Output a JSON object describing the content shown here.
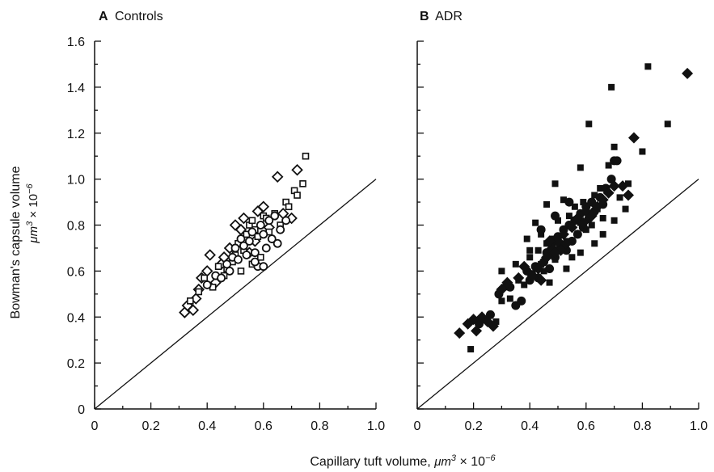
{
  "figure": {
    "ylabel": "Bowman's capsule volume",
    "ylabel_unit_base": "μm",
    "ylabel_unit_exp": "3",
    "ylabel_unit_mult": " × 10",
    "ylabel_unit_exp2": "−6",
    "xlabel_text": "Capillary tuft volume, ",
    "xlabel_unit_base": "μm",
    "xlabel_unit_exp": "3",
    "xlabel_unit_mult": " × 10",
    "xlabel_unit_exp2": "−6"
  },
  "chart_data": [
    {
      "type": "scatter",
      "panel_letter": "A",
      "title": "Controls",
      "xlim": [
        0,
        1.0
      ],
      "ylim": [
        0,
        1.6
      ],
      "x_ticks": [
        "0",
        "0.2",
        "0.4",
        "0.6",
        "0.8",
        "1.0"
      ],
      "y_ticks": [
        "0",
        "0.2",
        "0.4",
        "0.6",
        "0.8",
        "1.0",
        "1.2",
        "1.4",
        "1.6"
      ],
      "reference_line": [
        [
          0,
          0
        ],
        [
          1.0,
          1.0
        ]
      ],
      "series": [
        {
          "marker": "open-diamond",
          "points": [
            [
              0.32,
              0.42
            ],
            [
              0.33,
              0.45
            ],
            [
              0.35,
              0.43
            ],
            [
              0.36,
              0.48
            ],
            [
              0.37,
              0.52
            ],
            [
              0.38,
              0.57
            ],
            [
              0.4,
              0.6
            ],
            [
              0.41,
              0.67
            ],
            [
              0.43,
              0.55
            ],
            [
              0.45,
              0.63
            ],
            [
              0.46,
              0.66
            ],
            [
              0.48,
              0.7
            ],
            [
              0.5,
              0.8
            ],
            [
              0.52,
              0.78
            ],
            [
              0.53,
              0.83
            ],
            [
              0.55,
              0.68
            ],
            [
              0.57,
              0.73
            ],
            [
              0.58,
              0.86
            ],
            [
              0.6,
              0.88
            ],
            [
              0.62,
              0.79
            ],
            [
              0.65,
              1.01
            ],
            [
              0.67,
              0.85
            ],
            [
              0.7,
              0.83
            ],
            [
              0.72,
              1.04
            ]
          ]
        },
        {
          "marker": "open-square",
          "points": [
            [
              0.34,
              0.47
            ],
            [
              0.37,
              0.51
            ],
            [
              0.39,
              0.57
            ],
            [
              0.42,
              0.53
            ],
            [
              0.44,
              0.62
            ],
            [
              0.46,
              0.58
            ],
            [
              0.47,
              0.61
            ],
            [
              0.49,
              0.64
            ],
            [
              0.5,
              0.67
            ],
            [
              0.51,
              0.72
            ],
            [
              0.53,
              0.69
            ],
            [
              0.54,
              0.76
            ],
            [
              0.55,
              0.8
            ],
            [
              0.56,
              0.82
            ],
            [
              0.57,
              0.78
            ],
            [
              0.58,
              0.75
            ],
            [
              0.59,
              0.66
            ],
            [
              0.6,
              0.84
            ],
            [
              0.61,
              0.83
            ],
            [
              0.62,
              0.77
            ],
            [
              0.64,
              0.85
            ],
            [
              0.66,
              0.8
            ],
            [
              0.68,
              0.9
            ],
            [
              0.69,
              0.88
            ],
            [
              0.71,
              0.95
            ],
            [
              0.72,
              0.93
            ],
            [
              0.74,
              0.98
            ],
            [
              0.75,
              1.1
            ],
            [
              0.56,
              0.63
            ],
            [
              0.52,
              0.6
            ]
          ]
        },
        {
          "marker": "open-circle",
          "points": [
            [
              0.4,
              0.54
            ],
            [
              0.43,
              0.58
            ],
            [
              0.45,
              0.57
            ],
            [
              0.47,
              0.63
            ],
            [
              0.48,
              0.6
            ],
            [
              0.49,
              0.66
            ],
            [
              0.5,
              0.7
            ],
            [
              0.51,
              0.65
            ],
            [
              0.52,
              0.74
            ],
            [
              0.53,
              0.71
            ],
            [
              0.54,
              0.67
            ],
            [
              0.55,
              0.73
            ],
            [
              0.56,
              0.77
            ],
            [
              0.57,
              0.68
            ],
            [
              0.58,
              0.62
            ],
            [
              0.59,
              0.8
            ],
            [
              0.6,
              0.76
            ],
            [
              0.61,
              0.7
            ],
            [
              0.62,
              0.82
            ],
            [
              0.63,
              0.74
            ],
            [
              0.64,
              0.84
            ],
            [
              0.65,
              0.72
            ],
            [
              0.66,
              0.78
            ],
            [
              0.68,
              0.82
            ],
            [
              0.57,
              0.64
            ],
            [
              0.6,
              0.62
            ]
          ]
        }
      ]
    },
    {
      "type": "scatter",
      "panel_letter": "B",
      "title": "ADR",
      "xlim": [
        0,
        1.0
      ],
      "ylim": [
        0,
        1.6
      ],
      "x_ticks": [
        "0",
        "0.2",
        "0.4",
        "0.6",
        "0.8",
        "1.0"
      ],
      "y_ticks": [],
      "reference_line": [
        [
          0,
          0
        ],
        [
          1.0,
          1.0
        ]
      ],
      "series": [
        {
          "marker": "filled-square",
          "points": [
            [
              0.19,
              0.26
            ],
            [
              0.28,
              0.38
            ],
            [
              0.3,
              0.47
            ],
            [
              0.31,
              0.53
            ],
            [
              0.33,
              0.48
            ],
            [
              0.36,
              0.56
            ],
            [
              0.38,
              0.54
            ],
            [
              0.4,
              0.66
            ],
            [
              0.41,
              0.59
            ],
            [
              0.43,
              0.69
            ],
            [
              0.44,
              0.63
            ],
            [
              0.45,
              0.6
            ],
            [
              0.46,
              0.72
            ],
            [
              0.47,
              0.67
            ],
            [
              0.48,
              0.74
            ],
            [
              0.49,
              0.65
            ],
            [
              0.5,
              0.82
            ],
            [
              0.51,
              0.7
            ],
            [
              0.52,
              0.77
            ],
            [
              0.53,
              0.73
            ],
            [
              0.54,
              0.84
            ],
            [
              0.55,
              0.79
            ],
            [
              0.56,
              0.88
            ],
            [
              0.57,
              0.76
            ],
            [
              0.58,
              0.81
            ],
            [
              0.59,
              0.9
            ],
            [
              0.6,
              0.78
            ],
            [
              0.61,
              0.85
            ],
            [
              0.62,
              0.8
            ],
            [
              0.63,
              0.93
            ],
            [
              0.64,
              0.87
            ],
            [
              0.65,
              0.96
            ],
            [
              0.66,
              0.83
            ],
            [
              0.68,
              1.06
            ],
            [
              0.7,
              1.14
            ],
            [
              0.61,
              1.24
            ],
            [
              0.69,
              1.4
            ],
            [
              0.82,
              1.49
            ],
            [
              0.89,
              1.24
            ],
            [
              0.8,
              1.12
            ],
            [
              0.75,
              0.98
            ],
            [
              0.72,
              0.92
            ],
            [
              0.49,
              0.98
            ],
            [
              0.46,
              0.89
            ],
            [
              0.39,
              0.74
            ],
            [
              0.42,
              0.81
            ],
            [
              0.47,
              0.55
            ],
            [
              0.53,
              0.61
            ],
            [
              0.58,
              0.68
            ],
            [
              0.66,
              0.76
            ],
            [
              0.7,
              0.82
            ],
            [
              0.74,
              0.87
            ],
            [
              0.3,
              0.6
            ],
            [
              0.35,
              0.63
            ],
            [
              0.55,
              0.66
            ],
            [
              0.63,
              0.72
            ],
            [
              0.44,
              0.76
            ],
            [
              0.4,
              0.69
            ],
            [
              0.58,
              1.05
            ],
            [
              0.52,
              0.91
            ]
          ]
        },
        {
          "marker": "filled-circle",
          "points": [
            [
              0.22,
              0.37
            ],
            [
              0.26,
              0.41
            ],
            [
              0.29,
              0.5
            ],
            [
              0.33,
              0.53
            ],
            [
              0.35,
              0.45
            ],
            [
              0.37,
              0.47
            ],
            [
              0.39,
              0.6
            ],
            [
              0.4,
              0.56
            ],
            [
              0.42,
              0.62
            ],
            [
              0.43,
              0.57
            ],
            [
              0.45,
              0.64
            ],
            [
              0.46,
              0.68
            ],
            [
              0.47,
              0.61
            ],
            [
              0.48,
              0.72
            ],
            [
              0.49,
              0.66
            ],
            [
              0.5,
              0.75
            ],
            [
              0.51,
              0.71
            ],
            [
              0.52,
              0.78
            ],
            [
              0.53,
              0.69
            ],
            [
              0.54,
              0.8
            ],
            [
              0.55,
              0.73
            ],
            [
              0.56,
              0.82
            ],
            [
              0.57,
              0.76
            ],
            [
              0.58,
              0.85
            ],
            [
              0.59,
              0.79
            ],
            [
              0.6,
              0.88
            ],
            [
              0.61,
              0.83
            ],
            [
              0.62,
              0.9
            ],
            [
              0.63,
              0.86
            ],
            [
              0.65,
              0.92
            ],
            [
              0.66,
              0.89
            ],
            [
              0.67,
              0.96
            ],
            [
              0.69,
              1.0
            ],
            [
              0.7,
              1.08
            ],
            [
              0.71,
              1.08
            ],
            [
              0.54,
              0.9
            ],
            [
              0.49,
              0.84
            ],
            [
              0.44,
              0.78
            ]
          ]
        },
        {
          "marker": "filled-diamond",
          "points": [
            [
              0.15,
              0.33
            ],
            [
              0.18,
              0.37
            ],
            [
              0.2,
              0.39
            ],
            [
              0.21,
              0.34
            ],
            [
              0.23,
              0.4
            ],
            [
              0.25,
              0.38
            ],
            [
              0.27,
              0.36
            ],
            [
              0.3,
              0.52
            ],
            [
              0.32,
              0.55
            ],
            [
              0.36,
              0.57
            ],
            [
              0.38,
              0.62
            ],
            [
              0.41,
              0.58
            ],
            [
              0.43,
              0.61
            ],
            [
              0.44,
              0.56
            ],
            [
              0.46,
              0.66
            ],
            [
              0.48,
              0.7
            ],
            [
              0.5,
              0.73
            ],
            [
              0.51,
              0.69
            ],
            [
              0.52,
              0.76
            ],
            [
              0.53,
              0.72
            ],
            [
              0.55,
              0.79
            ],
            [
              0.57,
              0.83
            ],
            [
              0.59,
              0.81
            ],
            [
              0.6,
              0.86
            ],
            [
              0.62,
              0.84
            ],
            [
              0.64,
              0.88
            ],
            [
              0.66,
              0.91
            ],
            [
              0.68,
              0.94
            ],
            [
              0.7,
              0.97
            ],
            [
              0.73,
              0.97
            ],
            [
              0.75,
              0.93
            ],
            [
              0.77,
              1.18
            ],
            [
              0.96,
              1.46
            ],
            [
              0.47,
              0.73
            ],
            [
              0.49,
              0.68
            ]
          ]
        }
      ]
    }
  ]
}
